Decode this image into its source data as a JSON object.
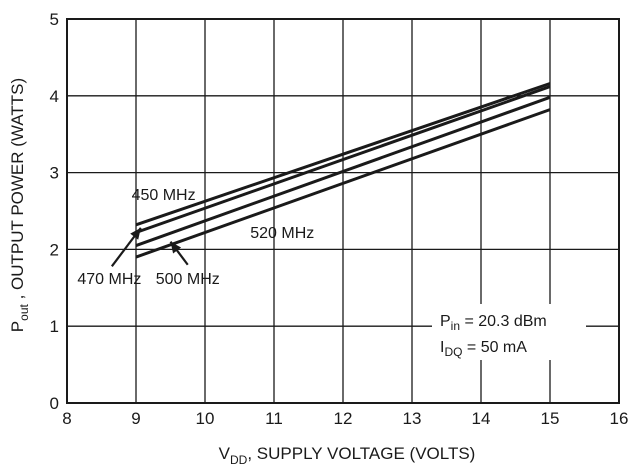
{
  "chart_data": {
    "type": "line",
    "title": "",
    "xlabel": {
      "main": "V",
      "sub": "DD",
      "rest": ", SUPPLY VOLTAGE (VOLTS)"
    },
    "ylabel": {
      "main": "P",
      "sub": "out",
      "rest": " , OUTPUT POWER (WATTS)"
    },
    "xlim": [
      8,
      16
    ],
    "ylim": [
      0,
      5
    ],
    "x_ticks": [
      "8",
      "9",
      "10",
      "11",
      "12",
      "13",
      "14",
      "15",
      "16"
    ],
    "y_ticks": [
      "0",
      "1",
      "2",
      "3",
      "4",
      "5"
    ],
    "grid": true,
    "series": [
      {
        "name": "450 MHz",
        "x": [
          9,
          15
        ],
        "y": [
          2.32,
          4.16
        ]
      },
      {
        "name": "470 MHz",
        "x": [
          9,
          15
        ],
        "y": [
          2.22,
          4.12
        ]
      },
      {
        "name": "500 MHz",
        "x": [
          9,
          15
        ],
        "y": [
          2.05,
          3.98
        ]
      },
      {
        "name": "520 MHz",
        "x": [
          9,
          15
        ],
        "y": [
          1.9,
          3.82
        ]
      }
    ],
    "annotation": {
      "line1": {
        "main": "P",
        "sub": "in",
        "rest": " = 20.3 dBm"
      },
      "line2": {
        "main": "I",
        "sub": "DQ",
        "rest": " = 50 mA"
      }
    },
    "curve_labels": [
      {
        "text": "450 MHz",
        "x": 9.4,
        "y": 2.64,
        "anchor": "middle",
        "arrow": null
      },
      {
        "text": "470 MHz",
        "x": 8.15,
        "y": 1.55,
        "anchor": "start",
        "arrow": {
          "from": [
            8.65,
            1.78
          ],
          "to": [
            9.07,
            2.28
          ]
        }
      },
      {
        "text": "500 MHz",
        "x": 9.75,
        "y": 1.55,
        "anchor": "middle",
        "arrow": {
          "from": [
            9.75,
            1.8
          ],
          "to": [
            9.5,
            2.1
          ]
        }
      },
      {
        "text": "520 MHz",
        "x": 11.12,
        "y": 2.15,
        "anchor": "middle",
        "arrow": null
      }
    ]
  }
}
